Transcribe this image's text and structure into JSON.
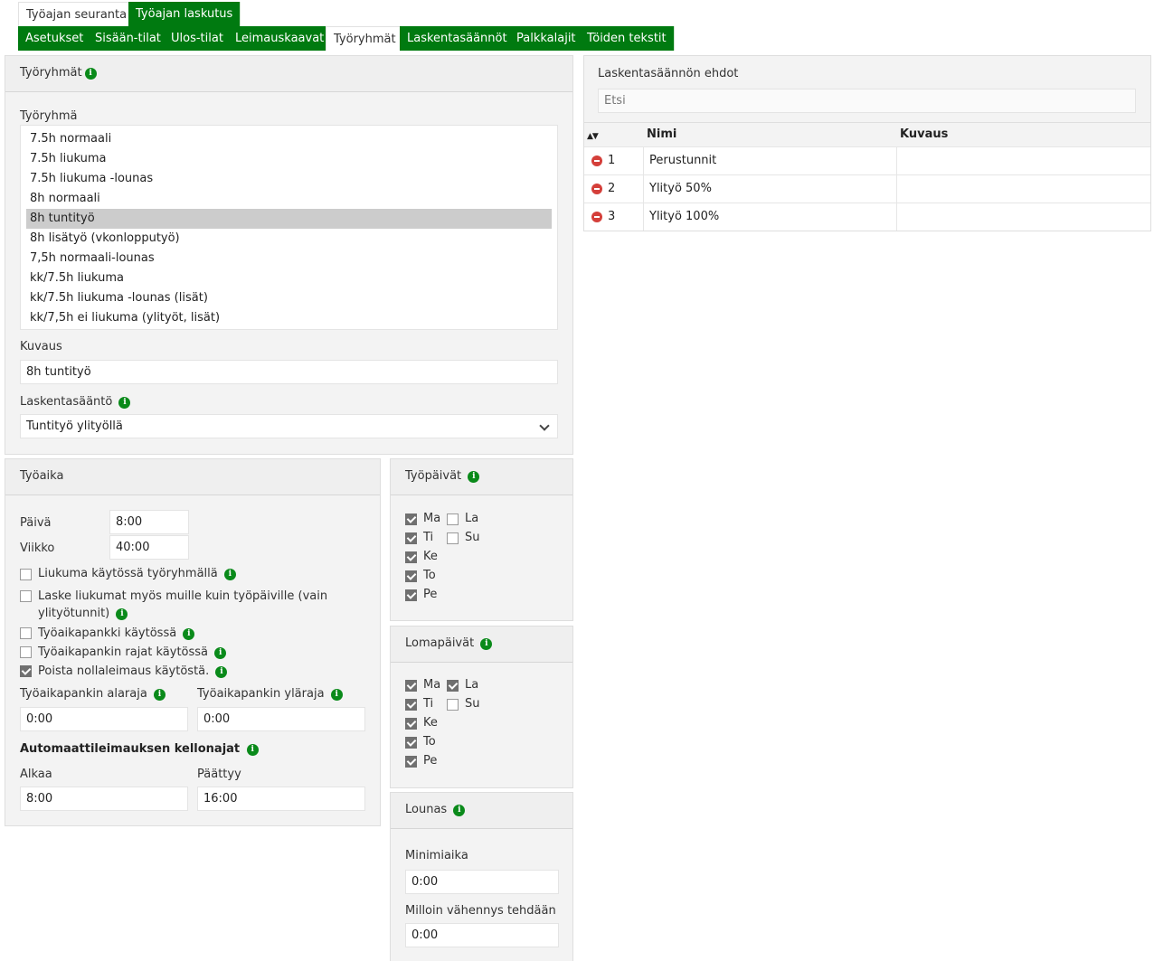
{
  "top_tabs": [
    {
      "label": "Työajan seuranta",
      "active": false
    },
    {
      "label": "Työajan laskutus",
      "active": true
    }
  ],
  "sub_tabs": [
    {
      "label": "Asetukset",
      "active": false
    },
    {
      "label": "Sisään-tilat",
      "active": false
    },
    {
      "label": "Ulos-tilat",
      "active": false
    },
    {
      "label": "Leimauskaavat",
      "active": false
    },
    {
      "label": "Työryhmät",
      "active": true
    },
    {
      "label": "Laskentasäännöt",
      "active": false
    },
    {
      "label": "Palkkalajit",
      "active": false
    },
    {
      "label": "Töiden tekstit",
      "active": false
    }
  ],
  "tyoryhmat": {
    "title": "Työryhmät",
    "list_label": "Työryhmä",
    "items": [
      "7.5h normaali",
      "7.5h liukuma",
      "7.5h liukuma -lounas",
      "8h normaali",
      "8h tuntityö",
      "8h lisätyö (vkonlopputyö)",
      "7,5h normaali-lounas",
      "kk/7.5h liukuma",
      "kk/7.5h liukuma -lounas (lisät)",
      "kk/7,5h ei liukuma (ylityöt, lisät)"
    ],
    "selected_index": 4,
    "kuvaus_label": "Kuvaus",
    "kuvaus_value": "8h tuntityö",
    "laskentasaanto_label": "Laskentasääntö",
    "laskentasaanto_value": "Tuntityö ylityöllä"
  },
  "tyoaika": {
    "title": "Työaika",
    "paiva_label": "Päivä",
    "paiva_value": "8:00",
    "viikko_label": "Viikko",
    "viikko_value": "40:00",
    "options": [
      {
        "label": "Liukuma käytössä työryhmällä",
        "checked": false
      },
      {
        "label": "Laske liukumat myös muille kuin työpäiville (vain",
        "label2": "ylityötunnit)",
        "checked": false
      },
      {
        "label": "Työaikapankki käytössä",
        "checked": false
      },
      {
        "label": "Työaikapankin rajat käytössä",
        "checked": false
      },
      {
        "label": "Poista nollaleimaus käytöstä.",
        "checked": true
      }
    ],
    "alaraja_label": "Työaikapankin alaraja",
    "alaraja_value": "0:00",
    "ylaraja_label": "Työaikapankin yläraja",
    "ylaraja_value": "0:00",
    "auto_title": "Automaattileimauksen kellonajat",
    "alkaa_label": "Alkaa",
    "alkaa_value": "8:00",
    "paattyy_label": "Päättyy",
    "paattyy_value": "16:00"
  },
  "tyopaivat": {
    "title": "Työpäivät",
    "days": [
      {
        "label": "Ma",
        "checked": true
      },
      {
        "label": "Ti",
        "checked": true
      },
      {
        "label": "Ke",
        "checked": true
      },
      {
        "label": "To",
        "checked": true
      },
      {
        "label": "Pe",
        "checked": true
      },
      {
        "label": "La",
        "checked": false
      },
      {
        "label": "Su",
        "checked": false
      }
    ]
  },
  "lomapaivat": {
    "title": "Lomapäivät",
    "days": [
      {
        "label": "Ma",
        "checked": true
      },
      {
        "label": "Ti",
        "checked": true
      },
      {
        "label": "Ke",
        "checked": true
      },
      {
        "label": "To",
        "checked": true
      },
      {
        "label": "Pe",
        "checked": true
      },
      {
        "label": "La",
        "checked": true
      },
      {
        "label": "Su",
        "checked": false
      }
    ]
  },
  "lounas": {
    "title": "Lounas",
    "minimiaika_label": "Minimiaika",
    "minimiaika_value": "0:00",
    "vahennys_label": "Milloin vähennys tehdään",
    "vahennys_value": "0:00"
  },
  "ehdot": {
    "title": "Laskentasäännön ehdot",
    "search_placeholder": "Etsi",
    "col_nimi": "Nimi",
    "col_kuvaus": "Kuvaus",
    "rows": [
      {
        "num": "1",
        "nimi": "Perustunnit",
        "kuvaus": ""
      },
      {
        "num": "2",
        "nimi": "Ylityö 50%",
        "kuvaus": ""
      },
      {
        "num": "3",
        "nimi": "Ylityö 100%",
        "kuvaus": ""
      }
    ]
  },
  "colors": {
    "accent_green": "#007a10",
    "remove_red": "#d43f3a",
    "selected_row": "#cccccc"
  }
}
